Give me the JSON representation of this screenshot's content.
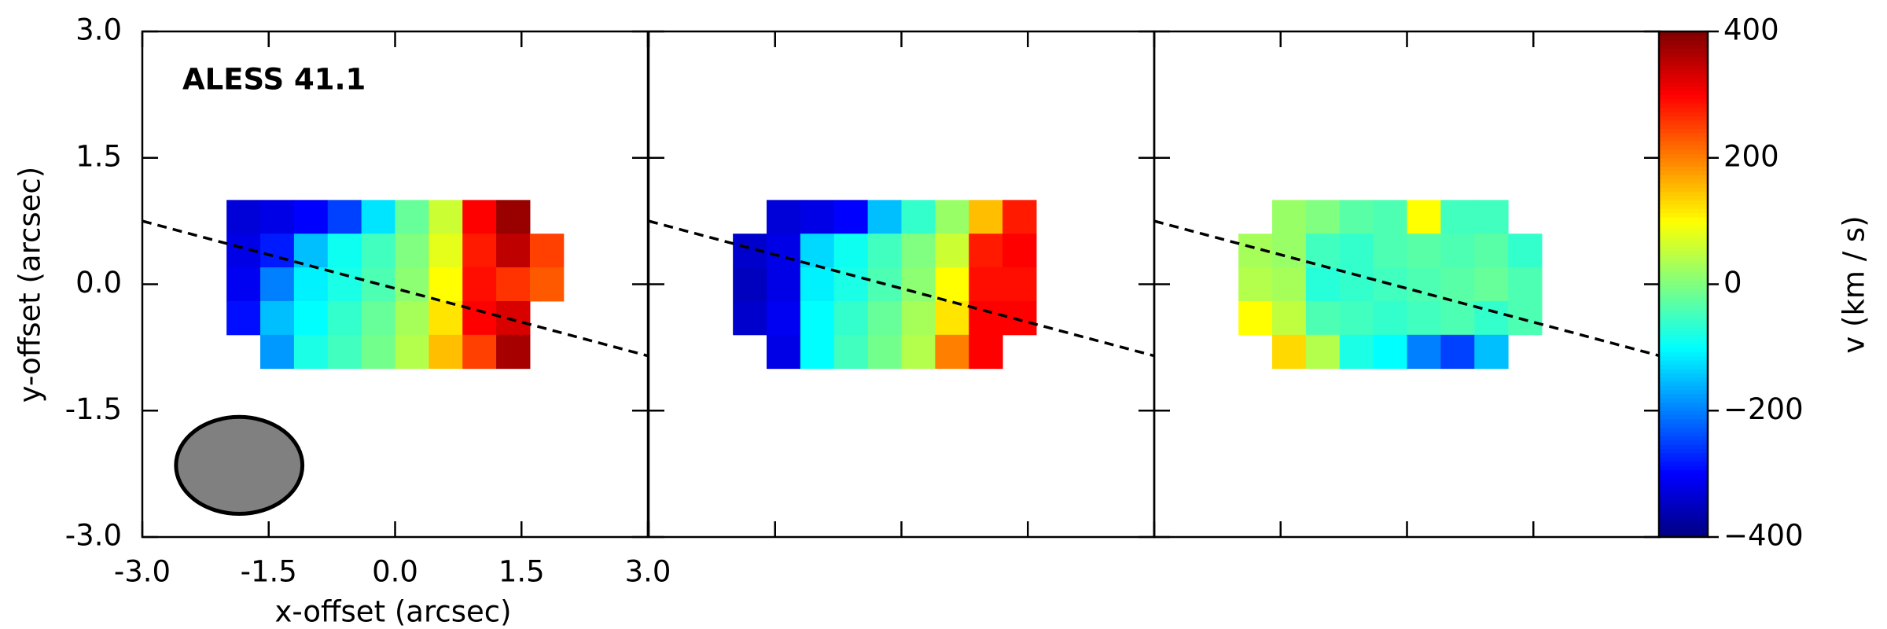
{
  "chart_data": {
    "type": "heatmap",
    "title": "ALESS 41.1",
    "xlabel": "x-offset (arcsec)",
    "ylabel": "y-offset (arcsec)",
    "colorbar_label": "v (km / s)",
    "colormap": "jet",
    "clim": [
      -400,
      400
    ],
    "cticks": [
      {
        "value": -400,
        "label": "−400"
      },
      {
        "value": -200,
        "label": "−200"
      },
      0,
      200,
      400
    ],
    "xlim": [
      -3,
      3
    ],
    "ylim": [
      -3,
      3
    ],
    "xticks": [
      {
        "value": -3,
        "label": "-3.0"
      },
      {
        "value": -1.5,
        "label": "-1.5"
      },
      {
        "value": 0,
        "label": "0.0"
      },
      {
        "value": 1.5,
        "label": "1.5"
      },
      {
        "value": 3,
        "label": "3.0"
      }
    ],
    "yticks": [
      {
        "value": -3,
        "label": "-3.0"
      },
      {
        "value": -1.5,
        "label": "-1.5"
      },
      {
        "value": 0,
        "label": "0.0"
      },
      {
        "value": 1.5,
        "label": "1.5"
      },
      {
        "value": 3,
        "label": "3.0"
      }
    ],
    "x": [
      -1.8,
      -1.4,
      -1.0,
      -0.6,
      -0.2,
      0.2,
      0.6,
      1.0,
      1.4,
      1.8
    ],
    "y": [
      0.8,
      0.4,
      0.0,
      -0.4,
      -0.8
    ],
    "panels": [
      {
        "values": [
          [
            -330,
            -320,
            -300,
            -250,
            -120,
            -20,
            60,
            300,
            380,
            null
          ],
          [
            -320,
            -280,
            -150,
            -90,
            -50,
            0,
            80,
            280,
            350,
            250
          ],
          [
            -310,
            -200,
            -110,
            -80,
            -40,
            10,
            100,
            290,
            260,
            230
          ],
          [
            -290,
            -150,
            -100,
            -60,
            -20,
            30,
            120,
            300,
            330,
            null
          ],
          [
            null,
            -180,
            -80,
            -50,
            -10,
            40,
            150,
            250,
            370,
            null
          ]
        ]
      },
      {
        "values": [
          [
            null,
            -330,
            -320,
            -300,
            -150,
            -60,
            20,
            150,
            280,
            null
          ],
          [
            -340,
            -320,
            -130,
            -90,
            -50,
            0,
            60,
            280,
            300,
            null
          ],
          [
            -350,
            -320,
            -110,
            -80,
            -40,
            10,
            100,
            290,
            290,
            null
          ],
          [
            -340,
            -310,
            -100,
            -60,
            -20,
            30,
            120,
            300,
            300,
            null
          ],
          [
            null,
            -320,
            -100,
            -50,
            -10,
            40,
            200,
            300,
            null,
            null
          ]
        ]
      },
      {
        "values": [
          [
            null,
            20,
            0,
            -30,
            -40,
            100,
            -50,
            -50,
            null,
            null
          ],
          [
            30,
            20,
            -50,
            -60,
            -40,
            -30,
            -40,
            -30,
            -60,
            null
          ],
          [
            40,
            30,
            -70,
            -60,
            -50,
            -40,
            -30,
            -20,
            -40,
            null
          ],
          [
            100,
            50,
            -40,
            -50,
            -60,
            -50,
            -40,
            -60,
            -40,
            null
          ],
          [
            null,
            130,
            40,
            -80,
            -100,
            -200,
            -250,
            -150,
            null,
            null
          ]
        ]
      }
    ],
    "major_axis": {
      "x": [
        -3,
        3
      ],
      "y": [
        0.75,
        -0.85
      ]
    },
    "beam": {
      "x": -1.85,
      "y": -2.15,
      "width": 1.5,
      "height": 1.15,
      "color": "#808080"
    }
  }
}
